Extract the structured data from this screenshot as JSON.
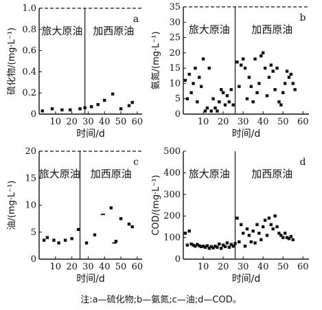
{
  "chart_data": [
    {
      "type": "scatter",
      "panel_label": "a",
      "ylabel": "硫化物/(mg·L⁻¹)",
      "xlabel": "时间/d",
      "ylim": [
        0,
        1.0
      ],
      "yticks": [
        "0",
        "0.2",
        "0.4",
        "0.6",
        "0.8",
        "1.0"
      ],
      "xlim": [
        0,
        63
      ],
      "xticks": [
        "10",
        "20",
        "30",
        "40",
        "50",
        "60"
      ],
      "split_day": 28,
      "dashed_top": true,
      "period_labels": [
        "旅大原油",
        "加西原油"
      ],
      "x": [
        2,
        8,
        14,
        19,
        25,
        28,
        32,
        36,
        40,
        45,
        50,
        55,
        57
      ],
      "y": [
        0.03,
        0.05,
        0.04,
        0.04,
        0.05,
        0.06,
        0.07,
        0.09,
        0.13,
        0.19,
        0.05,
        0.08,
        0.11
      ]
    },
    {
      "type": "scatter",
      "panel_label": "b",
      "ylabel": "氨氮/(mg·L⁻¹)",
      "xlabel": "时间/d",
      "ylim": [
        0,
        35
      ],
      "yticks": [
        "0",
        "5",
        "10",
        "15",
        "20",
        "25",
        "30",
        "35"
      ],
      "xlim": [
        0,
        63
      ],
      "xticks": [
        "10",
        "20",
        "30",
        "40",
        "50",
        "60"
      ],
      "split_day": 26,
      "dashed_top": true,
      "period_labels": [
        "旅大原油",
        "加西原油"
      ],
      "x": [
        1,
        2,
        3,
        4,
        5,
        6,
        7,
        8,
        9,
        10,
        11,
        12,
        13,
        14,
        15,
        16,
        17,
        18,
        19,
        20,
        21,
        22,
        23,
        24,
        25,
        27,
        28,
        29,
        30,
        31,
        32,
        33,
        34,
        35,
        36,
        37,
        38,
        39,
        40,
        41,
        42,
        43,
        44,
        45,
        46,
        47,
        48,
        49,
        50,
        51,
        52,
        53,
        54,
        55,
        56
      ],
      "y": [
        11,
        5,
        13,
        7,
        10,
        15,
        4,
        12,
        9,
        18,
        1,
        2,
        15,
        1,
        5,
        2,
        1,
        4,
        8,
        7,
        3,
        6,
        4,
        8,
        3,
        17,
        9,
        16,
        18,
        15,
        5,
        12,
        9,
        4,
        18,
        7,
        10,
        19,
        20,
        15,
        6,
        12,
        16,
        14,
        8,
        15,
        4,
        3,
        7,
        10,
        14,
        12,
        13,
        10,
        8
      ]
    },
    {
      "type": "scatter",
      "panel_label": "c",
      "ylabel": "油/(mg·L⁻¹)",
      "xlabel": "时间/d",
      "ylim": [
        0,
        20
      ],
      "yticks": [
        "0",
        "5",
        "10",
        "15",
        "20"
      ],
      "xlim": [
        0,
        63
      ],
      "xticks": [
        "10",
        "20",
        "30",
        "40",
        "50",
        "60"
      ],
      "split_day": 25,
      "dashed_top": true,
      "period_labels": [
        "旅大原油",
        "加西原油"
      ],
      "x": [
        3,
        5,
        9,
        12,
        16,
        20,
        24,
        29,
        34,
        39,
        44,
        46,
        47,
        50,
        55,
        57
      ],
      "y": [
        3.5,
        4,
        3.5,
        3,
        3.5,
        3.8,
        5.5,
        3,
        4.5,
        8.3,
        9.5,
        3,
        3.3,
        7.5,
        6.5,
        6
      ],
      "point_styles": [
        "sq",
        "sq",
        "sq",
        "sq",
        "sq",
        "sq",
        "sq",
        "sq",
        "sq",
        "dash",
        "sq",
        "dash",
        "sq",
        "sq",
        "sq",
        "sq"
      ]
    },
    {
      "type": "scatter",
      "panel_label": "d",
      "ylabel": "COD/(mg·L⁻¹)",
      "xlabel": "时间/d",
      "ylim": [
        0,
        500
      ],
      "yticks": [
        "0",
        "100",
        "200",
        "300",
        "400",
        "500"
      ],
      "xlim": [
        0,
        63
      ],
      "xticks": [
        "10",
        "20",
        "30",
        "40",
        "50",
        "60"
      ],
      "split_day": 26,
      "dashed_top": false,
      "period_labels": [
        "旅大原油",
        "加西原油"
      ],
      "x": [
        1,
        2,
        3,
        4,
        5,
        6,
        7,
        8,
        9,
        10,
        11,
        12,
        13,
        14,
        15,
        16,
        17,
        18,
        19,
        20,
        21,
        22,
        23,
        24,
        25,
        26,
        27,
        28,
        29,
        30,
        31,
        32,
        33,
        34,
        35,
        36,
        37,
        38,
        39,
        40,
        41,
        42,
        43,
        44,
        45,
        46,
        47,
        48,
        49,
        50,
        51,
        52,
        53,
        54,
        55
      ],
      "y": [
        120,
        65,
        130,
        70,
        65,
        60,
        68,
        62,
        58,
        60,
        55,
        62,
        50,
        58,
        52,
        60,
        55,
        70,
        50,
        65,
        58,
        75,
        55,
        68,
        60,
        72,
        190,
        80,
        160,
        120,
        60,
        140,
        110,
        80,
        130,
        75,
        160,
        120,
        90,
        150,
        180,
        110,
        190,
        160,
        140,
        200,
        150,
        120,
        110,
        100,
        120,
        100,
        95,
        105,
        90
      ]
    }
  ],
  "note": "注:a—硫化物;b—氨氮;c—油;d—COD。"
}
